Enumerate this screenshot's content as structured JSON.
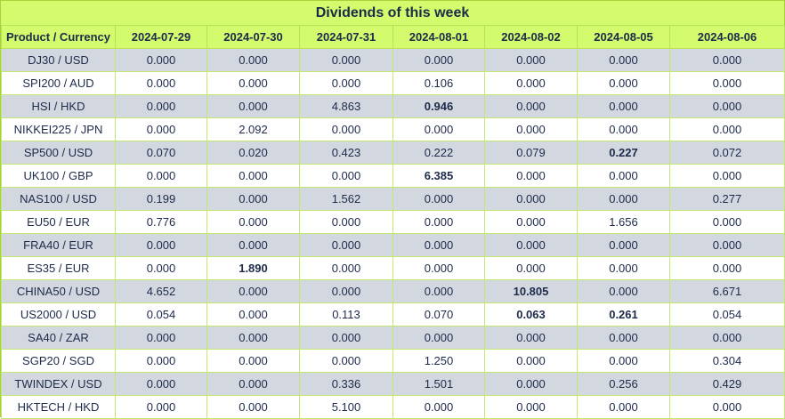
{
  "title": "Dividends of this week",
  "columns": [
    "Product / Currency",
    "2024-07-29",
    "2024-07-30",
    "2024-07-31",
    "2024-08-01",
    "2024-08-02",
    "2024-08-05",
    "2024-08-06"
  ],
  "rows": [
    {
      "product": "DJ30 / USD",
      "values": [
        "0.000",
        "0.000",
        "0.000",
        "0.000",
        "0.000",
        "0.000",
        "0.000"
      ],
      "bold": []
    },
    {
      "product": "SPI200 / AUD",
      "values": [
        "0.000",
        "0.000",
        "0.000",
        "0.106",
        "0.000",
        "0.000",
        "0.000"
      ],
      "bold": []
    },
    {
      "product": "HSI / HKD",
      "values": [
        "0.000",
        "0.000",
        "4.863",
        "0.946",
        "0.000",
        "0.000",
        "0.000"
      ],
      "bold": [
        3
      ]
    },
    {
      "product": "NIKKEI225 / JPN",
      "values": [
        "0.000",
        "2.092",
        "0.000",
        "0.000",
        "0.000",
        "0.000",
        "0.000"
      ],
      "bold": []
    },
    {
      "product": "SP500 / USD",
      "values": [
        "0.070",
        "0.020",
        "0.423",
        "0.222",
        "0.079",
        "0.227",
        "0.072"
      ],
      "bold": [
        5
      ]
    },
    {
      "product": "UK100 / GBP",
      "values": [
        "0.000",
        "0.000",
        "0.000",
        "6.385",
        "0.000",
        "0.000",
        "0.000"
      ],
      "bold": [
        3
      ]
    },
    {
      "product": "NAS100 / USD",
      "values": [
        "0.199",
        "0.000",
        "1.562",
        "0.000",
        "0.000",
        "0.000",
        "0.277"
      ],
      "bold": []
    },
    {
      "product": "EU50 / EUR",
      "values": [
        "0.776",
        "0.000",
        "0.000",
        "0.000",
        "0.000",
        "1.656",
        "0.000"
      ],
      "bold": []
    },
    {
      "product": "FRA40 / EUR",
      "values": [
        "0.000",
        "0.000",
        "0.000",
        "0.000",
        "0.000",
        "0.000",
        "0.000"
      ],
      "bold": []
    },
    {
      "product": "ES35 / EUR",
      "values": [
        "0.000",
        "1.890",
        "0.000",
        "0.000",
        "0.000",
        "0.000",
        "0.000"
      ],
      "bold": [
        1
      ]
    },
    {
      "product": "CHINA50 / USD",
      "values": [
        "4.652",
        "0.000",
        "0.000",
        "0.000",
        "10.805",
        "0.000",
        "6.671"
      ],
      "bold": [
        4
      ]
    },
    {
      "product": "US2000 / USD",
      "values": [
        "0.054",
        "0.000",
        "0.113",
        "0.070",
        "0.063",
        "0.261",
        "0.054"
      ],
      "bold": [
        4,
        5
      ]
    },
    {
      "product": "SA40 / ZAR",
      "values": [
        "0.000",
        "0.000",
        "0.000",
        "0.000",
        "0.000",
        "0.000",
        "0.000"
      ],
      "bold": []
    },
    {
      "product": "SGP20 / SGD",
      "values": [
        "0.000",
        "0.000",
        "0.000",
        "1.250",
        "0.000",
        "0.000",
        "0.304"
      ],
      "bold": []
    },
    {
      "product": "TWINDEX / USD",
      "values": [
        "0.000",
        "0.000",
        "0.336",
        "1.501",
        "0.000",
        "0.256",
        "0.429"
      ],
      "bold": []
    },
    {
      "product": "HKTECH / HKD",
      "values": [
        "0.000",
        "0.000",
        "5.100",
        "0.000",
        "0.000",
        "0.000",
        "0.000"
      ],
      "bold": []
    }
  ],
  "colors": {
    "header_bg": "#d4fa6e",
    "row_odd_bg": "#d3d7df",
    "row_even_bg": "#ffffff",
    "text": "#1d2a4a"
  }
}
